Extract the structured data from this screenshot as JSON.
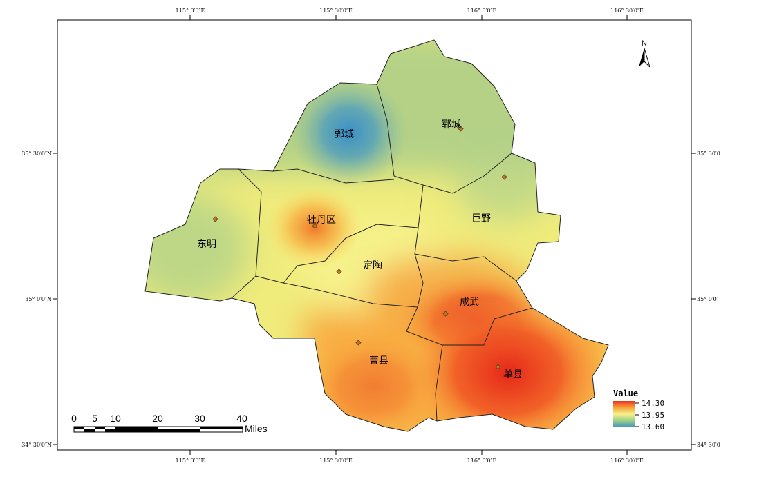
{
  "map": {
    "top_ticks": [
      "115° 0′0″E",
      "115° 30′0″E",
      "116° 0′0″E",
      "116° 30′0″E"
    ],
    "bottom_ticks": [
      "115° 0′0″E",
      "115° 30′0″E",
      "116° 0′0″E",
      "116° 30′0″E"
    ],
    "left_ticks": [
      "35° 30′0″N",
      "35° 0′0″N",
      "34° 30′0″N"
    ],
    "right_ticks": [
      "35° 30′0",
      "35° 0′0″",
      "34° 30′0"
    ],
    "north_label": "N",
    "counties": [
      {
        "name": "鄄城",
        "value": 13.6
      },
      {
        "name": "郓城",
        "value": 13.82
      },
      {
        "name": "东明",
        "value": 13.86
      },
      {
        "name": "牡丹区",
        "value": 14.05
      },
      {
        "name": "巨野",
        "value": 13.93
      },
      {
        "name": "定陶",
        "value": 13.96
      },
      {
        "name": "成武",
        "value": 14.18
      },
      {
        "name": "曹县",
        "value": 14.15
      },
      {
        "name": "单县",
        "value": 14.28
      }
    ],
    "scale_bar": {
      "ticks": [
        "0",
        "5",
        "10",
        "20",
        "30",
        "40"
      ],
      "unit": "Miles"
    },
    "legend": {
      "title": "Value",
      "max_label": "14.30",
      "mid_label": "13.95",
      "min_label": "13.60",
      "colors": {
        "high": "#e8311c",
        "mid": "#f4f08a",
        "low": "#3f94c5"
      }
    }
  }
}
